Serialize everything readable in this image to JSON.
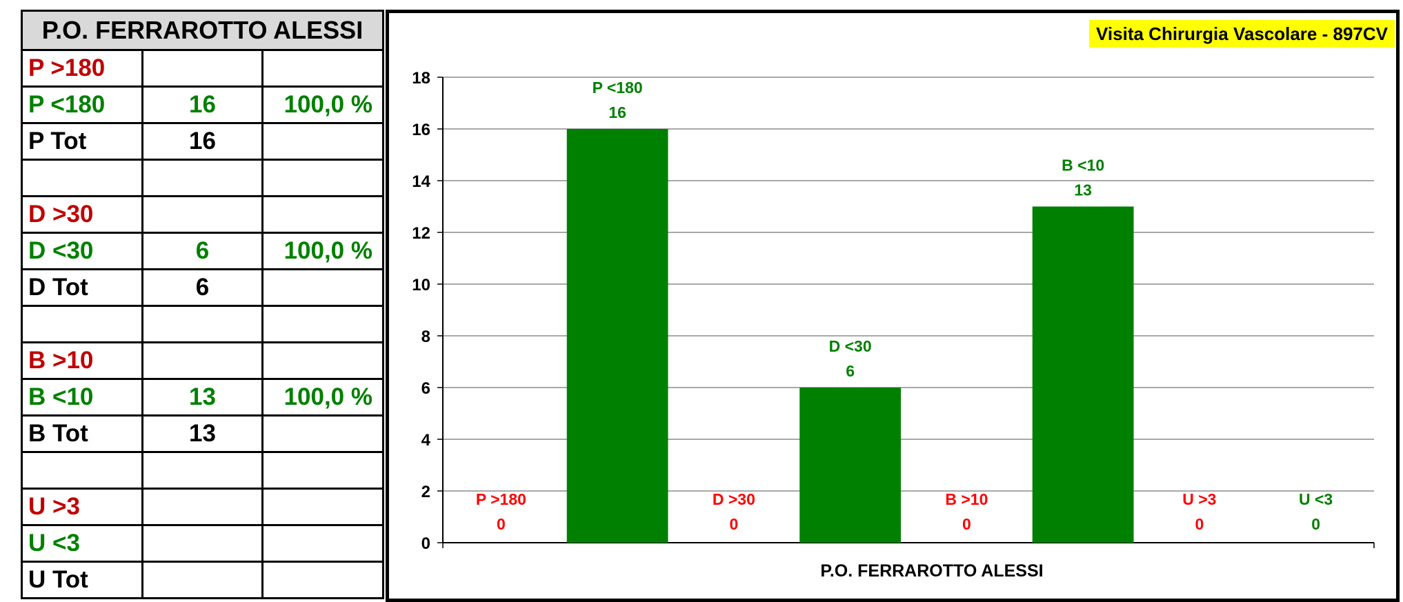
{
  "table": {
    "title": "P.O. FERRAROTTO ALESSI",
    "rows": [
      {
        "label": "P  >180",
        "count": "",
        "pct": "",
        "color": "#c00000"
      },
      {
        "label": "P  <180",
        "count": "16",
        "pct": "100,0 %",
        "color": "#008000"
      },
      {
        "label": "P  Tot",
        "count": "16",
        "pct": "",
        "color": "#000000"
      },
      {
        "label": "",
        "count": "",
        "pct": "",
        "color": "#000000"
      },
      {
        "label": "D  >30",
        "count": "",
        "pct": "",
        "color": "#c00000"
      },
      {
        "label": "D  <30",
        "count": "6",
        "pct": "100,0 %",
        "color": "#008000"
      },
      {
        "label": "D  Tot",
        "count": "6",
        "pct": "",
        "color": "#000000"
      },
      {
        "label": "",
        "count": "",
        "pct": "",
        "color": "#000000"
      },
      {
        "label": "B  >10",
        "count": "",
        "pct": "",
        "color": "#c00000"
      },
      {
        "label": "B  <10",
        "count": "13",
        "pct": "100,0 %",
        "color": "#008000"
      },
      {
        "label": "B  Tot",
        "count": "13",
        "pct": "",
        "color": "#000000"
      },
      {
        "label": "",
        "count": "",
        "pct": "",
        "color": "#000000"
      },
      {
        "label": "U  >3",
        "count": "",
        "pct": "",
        "color": "#c00000"
      },
      {
        "label": "U  <3",
        "count": "",
        "pct": "",
        "color": "#008000"
      },
      {
        "label": "U  Tot",
        "count": "",
        "pct": "",
        "color": "#000000"
      }
    ]
  },
  "chart_data": {
    "type": "bar",
    "title": "Visita Chirurgia Vascolare - 897CV",
    "xlabel": "P.O. FERRAROTTO ALESSI",
    "ylabel": "",
    "ylim": [
      0,
      18
    ],
    "yticks": [
      0,
      2,
      4,
      6,
      8,
      10,
      12,
      14,
      16,
      18
    ],
    "grid": true,
    "legend": "none",
    "categories": [
      "P  >180",
      "P  <180",
      "D  >30",
      "D  <30",
      "B  >10",
      "B  <10",
      "U  >3",
      "U  <3"
    ],
    "values": [
      0,
      16,
      0,
      6,
      0,
      13,
      0,
      0
    ],
    "data_labels": [
      "0",
      "16",
      "0",
      "6",
      "0",
      "13",
      "0",
      "0"
    ],
    "colors": [
      "#ff0000",
      "#008000",
      "#ff0000",
      "#008000",
      "#ff0000",
      "#008000",
      "#ff0000",
      "#008000"
    ],
    "label_colors": [
      "#ff0000",
      "#008000",
      "#ff0000",
      "#008000",
      "#ff0000",
      "#008000",
      "#ff0000",
      "#008000"
    ]
  }
}
